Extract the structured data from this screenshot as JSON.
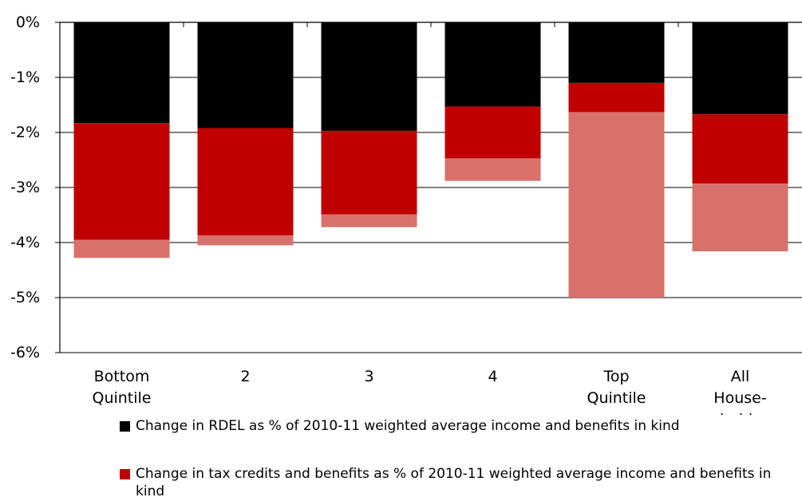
{
  "chart_data": {
    "type": "bar",
    "stacked": true,
    "categories": [
      "Bottom Quintile",
      "2",
      "3",
      "4",
      "Top Quintile",
      "All House-holds"
    ],
    "category_lines": [
      [
        "Bottom",
        "Quintile"
      ],
      [
        "2"
      ],
      [
        "3"
      ],
      [
        "4"
      ],
      [
        "Top",
        "Quintile"
      ],
      [
        "All",
        "House-",
        "holds"
      ]
    ],
    "series": [
      {
        "name": "Change in RDEL as % of 2010-11 weighted average income and benefits in kind",
        "color": "#000000",
        "values": [
          -1.83,
          -1.92,
          -1.97,
          -1.53,
          -1.1,
          -1.67
        ]
      },
      {
        "name": "Change in tax credits and benefits as % of 2010-11 weighted average income and benefits in kind",
        "color": "#c00000",
        "values": [
          -2.12,
          -1.95,
          -1.52,
          -0.94,
          -0.53,
          -1.26
        ]
      },
      {
        "name": "",
        "color": "#d8716b",
        "values": [
          -0.33,
          -0.18,
          -0.23,
          -0.41,
          -3.37,
          -1.23
        ]
      }
    ],
    "yticks": [
      "0%",
      "-1%",
      "-2%",
      "-3%",
      "-4%",
      "-5%",
      "-6%"
    ],
    "ylim": [
      -6,
      0
    ],
    "grid": true,
    "legend_position": "bottom"
  }
}
